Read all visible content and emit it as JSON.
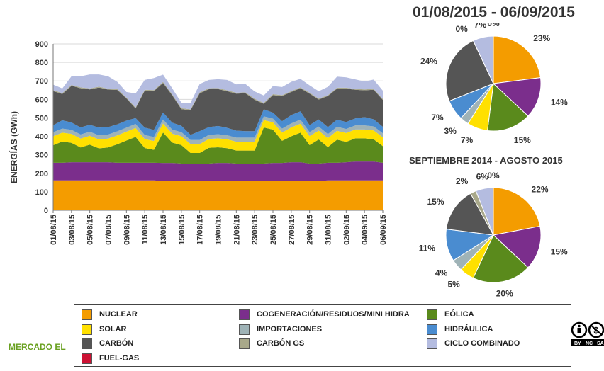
{
  "colors": {
    "nuclear": "#f49c00",
    "cogeneracion": "#7b2e8c",
    "eolica": "#5a8a1c",
    "solar": "#ffe000",
    "importaciones": "#9fb3b7",
    "hidraulica": "#4a8cd0",
    "carbon": "#555555",
    "carbon_gs": "#a8a88a",
    "ciclo_combinado": "#b4bce0",
    "fuel_gas": "#cc1133"
  },
  "footer": {
    "text": "MERCADO EL"
  },
  "chart_data": [
    {
      "type": "area",
      "stacked": true,
      "title": "",
      "xlabel": "",
      "ylabel": "ENERGÍAS (GWh)",
      "ylim": [
        0,
        900
      ],
      "yticks": [
        0,
        100,
        200,
        300,
        400,
        500,
        600,
        700,
        800,
        900
      ],
      "grid": true,
      "x": [
        "01/08/15",
        "02/08/15",
        "03/08/15",
        "04/08/15",
        "05/08/15",
        "06/08/15",
        "07/08/15",
        "08/08/15",
        "09/08/15",
        "10/08/15",
        "11/08/15",
        "12/08/15",
        "13/08/15",
        "14/08/15",
        "15/08/15",
        "16/08/15",
        "17/08/15",
        "18/08/15",
        "19/08/15",
        "20/08/15",
        "21/08/15",
        "22/08/15",
        "23/08/15",
        "24/08/15",
        "25/08/15",
        "26/08/15",
        "27/08/15",
        "28/08/15",
        "29/08/15",
        "30/08/15",
        "31/08/15",
        "01/09/15",
        "02/09/15",
        "03/09/15",
        "04/09/15",
        "05/09/15",
        "06/09/15"
      ],
      "xticks": [
        "01/08/15",
        "03/08/15",
        "05/08/15",
        "07/08/15",
        "09/08/15",
        "11/08/15",
        "13/08/15",
        "15/08/15",
        "17/08/15",
        "19/08/15",
        "21/08/15",
        "23/08/15",
        "25/08/15",
        "27/08/15",
        "29/08/15",
        "31/08/15",
        "02/09/15",
        "04/09/15",
        "06/09/15"
      ],
      "series": [
        {
          "name": "NUCLEAR",
          "color_key": "nuclear",
          "values": [
            162,
            162,
            162,
            162,
            162,
            162,
            162,
            162,
            162,
            162,
            162,
            162,
            158,
            158,
            158,
            158,
            158,
            158,
            158,
            158,
            158,
            158,
            158,
            158,
            158,
            158,
            158,
            158,
            158,
            158,
            162,
            162,
            162,
            162,
            162,
            162,
            162
          ]
        },
        {
          "name": "COGENERACIÓN/RESIDUOS/MINI HIDRA",
          "color_key": "cogeneracion",
          "values": [
            95,
            95,
            98,
            98,
            98,
            98,
            98,
            95,
            95,
            95,
            95,
            95,
            98,
            98,
            95,
            92,
            92,
            95,
            98,
            98,
            95,
            95,
            95,
            95,
            98,
            98,
            102,
            102,
            95,
            95,
            95,
            95,
            98,
            102,
            102,
            102,
            95
          ]
        },
        {
          "name": "EÓLICA",
          "color_key": "eolica",
          "values": [
            95,
            115,
            105,
            80,
            95,
            75,
            80,
            100,
            120,
            140,
            80,
            70,
            165,
            110,
            100,
            60,
            60,
            85,
            85,
            80,
            70,
            70,
            70,
            195,
            180,
            120,
            140,
            160,
            100,
            130,
            85,
            125,
            110,
            125,
            125,
            120,
            90
          ]
        },
        {
          "name": "SOLAR",
          "color_key": "solar",
          "values": [
            48,
            48,
            48,
            48,
            48,
            48,
            48,
            48,
            48,
            48,
            48,
            48,
            48,
            48,
            48,
            48,
            48,
            48,
            48,
            48,
            48,
            48,
            48,
            40,
            40,
            44,
            48,
            48,
            48,
            48,
            48,
            48,
            48,
            48,
            48,
            48,
            48
          ]
        },
        {
          "name": "IMPORTACIONES",
          "color_key": "importaciones",
          "values": [
            22,
            22,
            22,
            22,
            22,
            22,
            22,
            22,
            22,
            22,
            22,
            22,
            22,
            22,
            22,
            22,
            22,
            22,
            22,
            22,
            22,
            22,
            22,
            20,
            20,
            22,
            22,
            22,
            22,
            22,
            22,
            22,
            22,
            22,
            22,
            22,
            22
          ]
        },
        {
          "name": "HIDRÁULICA",
          "color_key": "hidraulica",
          "values": [
            38,
            45,
            40,
            38,
            38,
            42,
            40,
            38,
            38,
            32,
            40,
            38,
            38,
            38,
            34,
            28,
            48,
            42,
            45,
            40,
            38,
            35,
            35,
            38,
            32,
            40,
            45,
            45,
            38,
            38,
            38,
            38,
            38,
            38,
            45,
            38,
            35
          ]
        },
        {
          "name": "CARBÓN",
          "color_key": "carbon",
          "values": [
            185,
            142,
            198,
            212,
            191,
            217,
            203,
            186,
            120,
            52,
            200,
            210,
            160,
            148,
            90,
            133,
            205,
            205,
            200,
            198,
            200,
            205,
            170,
            30,
            95,
            136,
            125,
            125,
            170,
            108,
            168,
            168,
            180,
            155,
            145,
            160,
            145
          ]
        },
        {
          "name": "CARBÓN GS",
          "color_key": "carbon_gs",
          "values": [
            5,
            5,
            5,
            5,
            5,
            5,
            5,
            5,
            5,
            5,
            5,
            5,
            5,
            5,
            5,
            5,
            5,
            5,
            5,
            5,
            5,
            5,
            5,
            5,
            5,
            5,
            5,
            5,
            5,
            5,
            5,
            5,
            5,
            5,
            5,
            5,
            5
          ]
        },
        {
          "name": "CICLO COMBINADO",
          "color_key": "ciclo_combinado",
          "values": [
            30,
            25,
            47,
            60,
            76,
            66,
            67,
            39,
            30,
            76,
            53,
            65,
            40,
            33,
            30,
            35,
            45,
            45,
            48,
            56,
            45,
            45,
            40,
            40,
            44,
            44,
            50,
            46,
            40,
            40,
            45,
            60,
            56,
            51,
            43,
            50,
            45
          ]
        },
        {
          "name": "FUEL-GAS",
          "color_key": "fuel_gas",
          "values": [
            0,
            0,
            0,
            0,
            0,
            0,
            0,
            0,
            0,
            0,
            0,
            0,
            0,
            0,
            0,
            0,
            0,
            0,
            0,
            0,
            0,
            0,
            0,
            0,
            0,
            0,
            0,
            0,
            0,
            0,
            0,
            0,
            0,
            0,
            0,
            0,
            0
          ]
        }
      ]
    },
    {
      "type": "pie",
      "title": "01/08/2015 - 06/09/2015",
      "slices": [
        {
          "name": "NUCLEAR",
          "color_key": "nuclear",
          "value": 23,
          "label": "23%"
        },
        {
          "name": "COGENERACIÓN/RESIDUOS/MINI HIDRA",
          "color_key": "cogeneracion",
          "value": 14,
          "label": "14%"
        },
        {
          "name": "EÓLICA",
          "color_key": "eolica",
          "value": 15,
          "label": "15%"
        },
        {
          "name": "SOLAR",
          "color_key": "solar",
          "value": 7,
          "label": "7%"
        },
        {
          "name": "IMPORTACIONES",
          "color_key": "importaciones",
          "value": 3,
          "label": "3%"
        },
        {
          "name": "HIDRÁULICA",
          "color_key": "hidraulica",
          "value": 7,
          "label": "7%"
        },
        {
          "name": "CARBÓN",
          "color_key": "carbon",
          "value": 24,
          "label": "24%"
        },
        {
          "name": "CARBÓN GS",
          "color_key": "carbon_gs",
          "value": 0,
          "label": "0%"
        },
        {
          "name": "CICLO COMBINADO",
          "color_key": "ciclo_combinado",
          "value": 7,
          "label": "7%"
        },
        {
          "name": "FUEL-GAS",
          "color_key": "fuel_gas",
          "value": 0,
          "label": "0%"
        }
      ]
    },
    {
      "type": "pie",
      "title": "SEPTIEMBRE 2014 - AGOSTO 2015",
      "slices": [
        {
          "name": "NUCLEAR",
          "color_key": "nuclear",
          "value": 22,
          "label": "22%"
        },
        {
          "name": "COGENERACIÓN/RESIDUOS/MINI HIDRA",
          "color_key": "cogeneracion",
          "value": 15,
          "label": "15%"
        },
        {
          "name": "EÓLICA",
          "color_key": "eolica",
          "value": 20,
          "label": "20%"
        },
        {
          "name": "SOLAR",
          "color_key": "solar",
          "value": 5,
          "label": "5%"
        },
        {
          "name": "IMPORTACIONES",
          "color_key": "importaciones",
          "value": 4,
          "label": "4%"
        },
        {
          "name": "HIDRÁULICA",
          "color_key": "hidraulica",
          "value": 11,
          "label": "11%"
        },
        {
          "name": "CARBÓN",
          "color_key": "carbon",
          "value": 15,
          "label": "15%"
        },
        {
          "name": "CARBÓN GS",
          "color_key": "carbon_gs",
          "value": 2,
          "label": "2%"
        },
        {
          "name": "CICLO COMBINADO",
          "color_key": "ciclo_combinado",
          "value": 6,
          "label": "6%"
        },
        {
          "name": "FUEL-GAS",
          "color_key": "fuel_gas",
          "value": 0,
          "label": "0%"
        }
      ]
    }
  ],
  "legend": [
    {
      "label": "NUCLEAR",
      "color_key": "nuclear"
    },
    {
      "label": "COGENERACIÓN/RESIDUOS/MINI HIDRA",
      "color_key": "cogeneracion"
    },
    {
      "label": "EÓLICA",
      "color_key": "eolica"
    },
    {
      "label": "SOLAR",
      "color_key": "solar"
    },
    {
      "label": "IMPORTACIONES",
      "color_key": "importaciones"
    },
    {
      "label": "HIDRÁULICA",
      "color_key": "hidraulica"
    },
    {
      "label": "CARBÓN",
      "color_key": "carbon"
    },
    {
      "label": "CARBÓN GS",
      "color_key": "carbon_gs"
    },
    {
      "label": "CICLO COMBINADO",
      "color_key": "ciclo_combinado"
    },
    {
      "label": "FUEL-GAS",
      "color_key": "fuel_gas"
    }
  ],
  "license": {
    "icon": "creative-commons-by-nc-icon",
    "labels": [
      "BY",
      "NC",
      "SA"
    ]
  }
}
